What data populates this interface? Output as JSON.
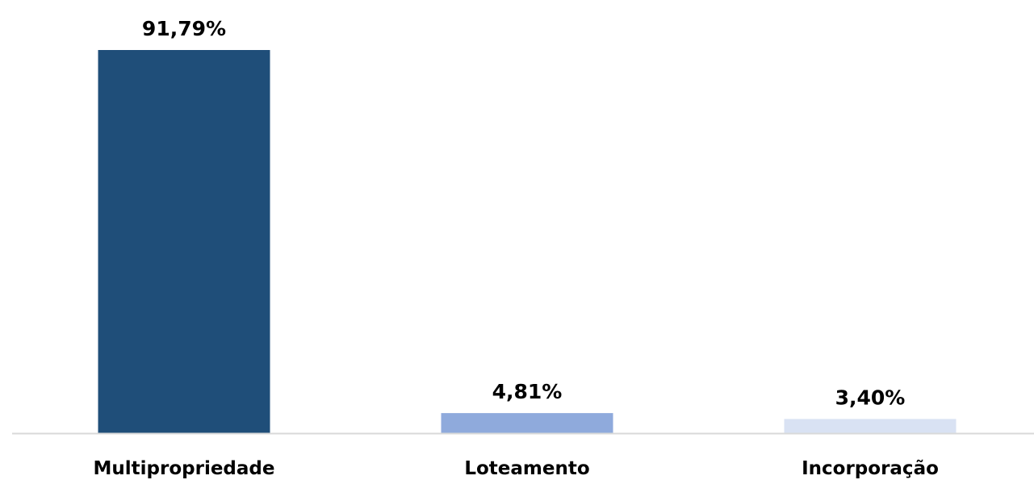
{
  "chart_data": {
    "type": "bar",
    "categories": [
      "Multipropriedade",
      "Loteamento",
      "Incorporação"
    ],
    "values": [
      91.79,
      4.81,
      3.4
    ],
    "value_labels": [
      "91,79%",
      "4,81%",
      "3,40%"
    ],
    "colors": [
      "#1f4e79",
      "#8faadc",
      "#d9e2f3"
    ],
    "axis_color": "#d9d9d9",
    "ylim": [
      0,
      100
    ],
    "grid": false,
    "legend": "none"
  }
}
